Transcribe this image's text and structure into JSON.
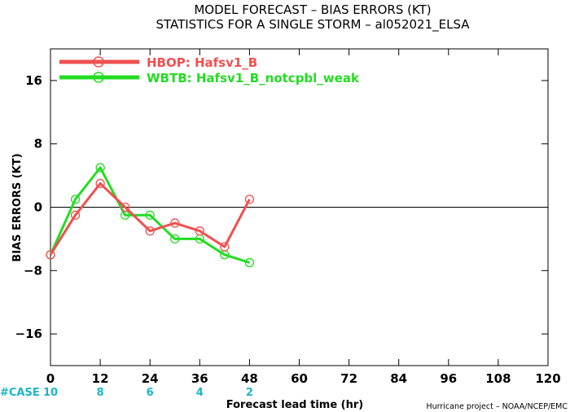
{
  "chart_data": {
    "type": "line",
    "title": "MODEL FORECAST – BIAS ERRORS (KT)",
    "subtitle": "STATISTICS FOR A SINGLE STORM – al052021_ELSA",
    "xlabel": "Forecast lead time (hr)",
    "ylabel": "BIAS ERRORS (KT)",
    "xlim": [
      0,
      120
    ],
    "ylim": [
      -20,
      20
    ],
    "xticks": [
      0,
      12,
      24,
      36,
      48,
      60,
      72,
      84,
      96,
      108,
      120
    ],
    "yticks": [
      16,
      8,
      0,
      -8,
      -16
    ],
    "zero_line": true,
    "grid": false,
    "legend_placement": "top-left",
    "case_label": "#CASE",
    "cases": [
      {
        "x": 0,
        "n": "10"
      },
      {
        "x": 12,
        "n": "8"
      },
      {
        "x": 24,
        "n": "6"
      },
      {
        "x": 36,
        "n": "4"
      },
      {
        "x": 48,
        "n": "2"
      }
    ],
    "credit": "Hurricane project – NOAA/NCEP/EMC",
    "series": [
      {
        "name": "HBOP: Hafsv1_B",
        "color": "#f05050",
        "x": [
          0,
          6,
          12,
          18,
          24,
          30,
          36,
          42,
          48
        ],
        "values": [
          -6,
          -1,
          3,
          0,
          -3,
          -2,
          -3,
          -5,
          1
        ]
      },
      {
        "name": "WBTB: Hafsv1_B_notcpbl_weak",
        "color": "#22dd22",
        "x": [
          0,
          6,
          12,
          18,
          24,
          30,
          36,
          42,
          48
        ],
        "values": [
          -6,
          1,
          5,
          -1,
          -1,
          -4,
          -4,
          -6,
          -7
        ]
      }
    ]
  }
}
